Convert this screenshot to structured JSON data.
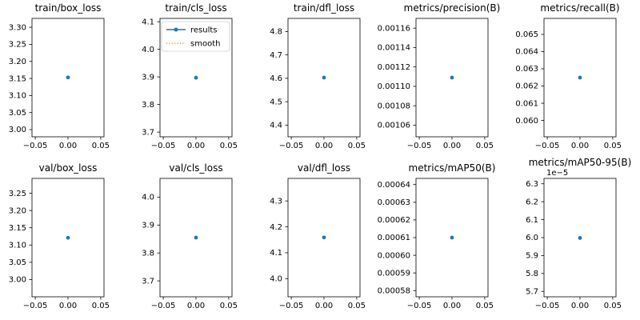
{
  "style": {
    "background": "#ffffff",
    "series_color": "#1f77b4",
    "smooth_color": "#ff7f0e",
    "axes_edge_color": "#000000",
    "text_color": "#000000",
    "legend_border_color": "#cccccc"
  },
  "chart_data": [
    {
      "type": "scatter",
      "title": "train/box_loss",
      "x": [
        0.0
      ],
      "y": [
        3.153
      ],
      "xlim": [
        -0.055,
        0.055
      ],
      "ylim": [
        2.979,
        3.326
      ],
      "xticks": {
        "values": [
          -0.05,
          0.0,
          0.05
        ],
        "labels": [
          "−0.05",
          "0.00",
          "0.05"
        ]
      },
      "yticks": {
        "values": [
          3.0,
          3.05,
          3.1,
          3.15,
          3.2,
          3.25,
          3.3
        ],
        "labels": [
          "3.00",
          "3.05",
          "3.10",
          "3.15",
          "3.20",
          "3.25",
          "3.30"
        ]
      }
    },
    {
      "type": "scatter",
      "title": "train/cls_loss",
      "x": [
        0.0
      ],
      "y": [
        3.897
      ],
      "xlim": [
        -0.055,
        0.055
      ],
      "ylim": [
        3.683,
        4.112
      ],
      "xticks": {
        "values": [
          -0.05,
          0.0,
          0.05
        ],
        "labels": [
          "−0.05",
          "0.00",
          "0.05"
        ]
      },
      "yticks": {
        "values": [
          3.7,
          3.8,
          3.9,
          4.0,
          4.1
        ],
        "labels": [
          "3.7",
          "3.8",
          "3.9",
          "4.0",
          "4.1"
        ]
      },
      "legend": {
        "position": "upper right",
        "items": [
          {
            "label": "results",
            "color": "#1f77b4",
            "line": "solid-marker"
          },
          {
            "label": "smooth",
            "color": "#ff7f0e",
            "line": "dotted"
          }
        ]
      }
    },
    {
      "type": "scatter",
      "title": "train/dfl_loss",
      "x": [
        0.0
      ],
      "y": [
        4.603
      ],
      "xlim": [
        -0.055,
        0.055
      ],
      "ylim": [
        4.35,
        4.856
      ],
      "xticks": {
        "values": [
          -0.05,
          0.0,
          0.05
        ],
        "labels": [
          "−0.05",
          "0.00",
          "0.05"
        ]
      },
      "yticks": {
        "values": [
          4.4,
          4.5,
          4.6,
          4.7,
          4.8
        ],
        "labels": [
          "4.4",
          "4.5",
          "4.6",
          "4.7",
          "4.8"
        ]
      }
    },
    {
      "type": "scatter",
      "title": "metrics/precision(B)",
      "x": [
        0.0
      ],
      "y": [
        0.001109
      ],
      "xlim": [
        -0.055,
        0.055
      ],
      "ylim": [
        0.001048,
        0.00117
      ],
      "xticks": {
        "values": [
          -0.05,
          0.0,
          0.05
        ],
        "labels": [
          "−0.05",
          "0.00",
          "0.05"
        ]
      },
      "yticks": {
        "values": [
          0.00106,
          0.00108,
          0.0011,
          0.00112,
          0.00114,
          0.00116
        ],
        "labels": [
          "0.00106",
          "0.00108",
          "0.00110",
          "0.00112",
          "0.00114",
          "0.00116"
        ]
      }
    },
    {
      "type": "scatter",
      "title": "metrics/recall(B)",
      "x": [
        0.0
      ],
      "y": [
        0.06249
      ],
      "xlim": [
        -0.055,
        0.055
      ],
      "ylim": [
        0.05905,
        0.06593
      ],
      "xticks": {
        "values": [
          -0.05,
          0.0,
          0.05
        ],
        "labels": [
          "−0.05",
          "0.00",
          "0.05"
        ]
      },
      "yticks": {
        "values": [
          0.06,
          0.061,
          0.062,
          0.063,
          0.064,
          0.065
        ],
        "labels": [
          "0.060",
          "0.061",
          "0.062",
          "0.063",
          "0.064",
          "0.065"
        ]
      }
    },
    {
      "type": "scatter",
      "title": "val/box_loss",
      "x": [
        0.0
      ],
      "y": [
        3.121
      ],
      "xlim": [
        -0.055,
        0.055
      ],
      "ylim": [
        2.95,
        3.293
      ],
      "xticks": {
        "values": [
          -0.05,
          0.0,
          0.05
        ],
        "labels": [
          "−0.05",
          "0.00",
          "0.05"
        ]
      },
      "yticks": {
        "values": [
          3.0,
          3.05,
          3.1,
          3.15,
          3.2,
          3.25
        ],
        "labels": [
          "3.00",
          "3.05",
          "3.10",
          "3.15",
          "3.20",
          "3.25"
        ]
      }
    },
    {
      "type": "scatter",
      "title": "val/cls_loss",
      "x": [
        0.0
      ],
      "y": [
        3.855
      ],
      "xlim": [
        -0.055,
        0.055
      ],
      "ylim": [
        3.643,
        4.067
      ],
      "xticks": {
        "values": [
          -0.05,
          0.0,
          0.05
        ],
        "labels": [
          "−0.05",
          "0.00",
          "0.05"
        ]
      },
      "yticks": {
        "values": [
          3.7,
          3.8,
          3.9,
          4.0
        ],
        "labels": [
          "3.7",
          "3.8",
          "3.9",
          "4.0"
        ]
      }
    },
    {
      "type": "scatter",
      "title": "val/dfl_loss",
      "x": [
        0.0
      ],
      "y": [
        4.159
      ],
      "xlim": [
        -0.055,
        0.055
      ],
      "ylim": [
        3.93,
        4.387
      ],
      "xticks": {
        "values": [
          -0.05,
          0.0,
          0.05
        ],
        "labels": [
          "−0.05",
          "0.00",
          "0.05"
        ]
      },
      "yticks": {
        "values": [
          4.0,
          4.1,
          4.2,
          4.3
        ],
        "labels": [
          "4.0",
          "4.1",
          "4.2",
          "4.3"
        ]
      }
    },
    {
      "type": "scatter",
      "title": "metrics/mAP50(B)",
      "x": [
        0.0
      ],
      "y": [
        0.00061
      ],
      "xlim": [
        -0.055,
        0.055
      ],
      "ylim": [
        0.0005765,
        0.0006435
      ],
      "xticks": {
        "values": [
          -0.05,
          0.0,
          0.05
        ],
        "labels": [
          "−0.05",
          "0.00",
          "0.05"
        ]
      },
      "yticks": {
        "values": [
          0.00058,
          0.00059,
          0.0006,
          0.00061,
          0.00062,
          0.00063,
          0.00064
        ],
        "labels": [
          "0.00058",
          "0.00059",
          "0.00060",
          "0.00061",
          "0.00062",
          "0.00063",
          "0.00064"
        ]
      }
    },
    {
      "type": "scatter",
      "title": "metrics/mAP50-95(B)",
      "offset_text": "1e−5",
      "x": [
        0.0
      ],
      "y": [
        5.998e-05
      ],
      "xlim": [
        -0.055,
        0.055
      ],
      "ylim": [
        5.67e-05,
        6.33e-05
      ],
      "xticks": {
        "values": [
          -0.05,
          0.0,
          0.05
        ],
        "labels": [
          "−0.05",
          "0.00",
          "0.05"
        ]
      },
      "yticks": {
        "values": [
          5.7e-05,
          5.8e-05,
          5.9e-05,
          6e-05,
          6.1e-05,
          6.2e-05,
          6.3e-05
        ],
        "labels": [
          "5.7",
          "5.8",
          "5.9",
          "6.0",
          "6.1",
          "6.2",
          "6.3"
        ]
      }
    }
  ]
}
